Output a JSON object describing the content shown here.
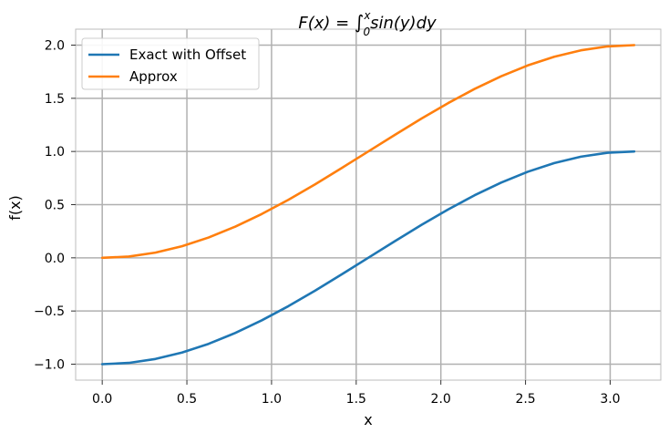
{
  "chart_data": {
    "type": "line",
    "title": "F(x) = ∫₀ˣ sin(y)dy",
    "title_parts": {
      "lhs": "F(x) = ",
      "integral": "∫",
      "upper": "x",
      "lower": "0",
      "rhs": "sin(y)dy"
    },
    "xlabel": "x",
    "ylabel": "f(x)",
    "xlim": [
      -0.157,
      3.299
    ],
    "ylim": [
      -1.15,
      2.15
    ],
    "xticks": [
      0.0,
      0.5,
      1.0,
      1.5,
      2.0,
      2.5,
      3.0
    ],
    "xtick_labels": [
      "0.0",
      "0.5",
      "1.0",
      "1.5",
      "2.0",
      "2.5",
      "3.0"
    ],
    "yticks": [
      -1.0,
      -0.5,
      0.0,
      0.5,
      1.0,
      1.5,
      2.0
    ],
    "ytick_labels": [
      "−1.0",
      "−0.5",
      "0.0",
      "0.5",
      "1.0",
      "1.5",
      "2.0"
    ],
    "grid": true,
    "legend_position": "top-left",
    "x": [
      0.0,
      0.157,
      0.314,
      0.471,
      0.628,
      0.785,
      0.942,
      1.1,
      1.257,
      1.414,
      1.571,
      1.728,
      1.885,
      2.042,
      2.199,
      2.356,
      2.513,
      2.67,
      2.827,
      2.985,
      3.142
    ],
    "series": [
      {
        "name": "Exact with Offset",
        "color": "#1f77b4",
        "values": [
          -1.0,
          -0.988,
          -0.951,
          -0.891,
          -0.809,
          -0.707,
          -0.588,
          -0.454,
          -0.309,
          -0.156,
          0.0,
          0.156,
          0.309,
          0.454,
          0.588,
          0.707,
          0.809,
          0.891,
          0.951,
          0.988,
          1.0
        ]
      },
      {
        "name": "Approx",
        "color": "#ff7f0e",
        "values": [
          0.0,
          0.012,
          0.049,
          0.109,
          0.191,
          0.293,
          0.412,
          0.546,
          0.691,
          0.844,
          1.0,
          1.156,
          1.309,
          1.454,
          1.588,
          1.707,
          1.809,
          1.891,
          1.951,
          1.988,
          2.0
        ]
      }
    ]
  }
}
